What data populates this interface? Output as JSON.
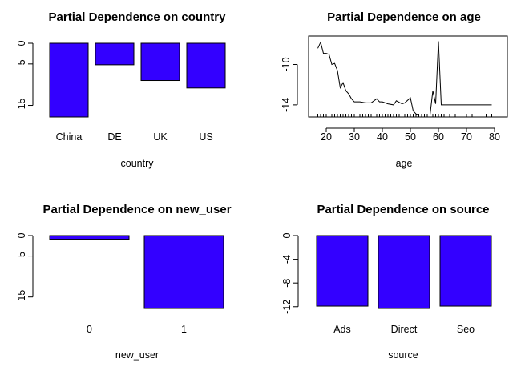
{
  "chart_data": [
    {
      "type": "bar",
      "title": "Partial Dependence on country",
      "xlabel": "country",
      "categories": [
        "China",
        "DE",
        "UK",
        "US"
      ],
      "values": [
        -17.8,
        -5.2,
        -9.0,
        -10.8
      ],
      "ylim": [
        -17.8,
        0
      ],
      "yticks": [
        0,
        -5,
        -15
      ],
      "ytick_labels": [
        "0",
        "-5",
        "-15"
      ],
      "color": "#3300ff"
    },
    {
      "type": "line",
      "title": "Partial Dependence on age",
      "xlabel": "age",
      "x": [
        17,
        18,
        19,
        20,
        21,
        22,
        23,
        24,
        25,
        26,
        27,
        28,
        29,
        30,
        32,
        34,
        36,
        38,
        39,
        40,
        42,
        44,
        45,
        47,
        48,
        50,
        51,
        52,
        53,
        55,
        57,
        58,
        59,
        60,
        61,
        62,
        64,
        66,
        70,
        72,
        73,
        77,
        79
      ],
      "y": [
        -8.4,
        -7.8,
        -8.9,
        -8.9,
        -9.0,
        -10.0,
        -9.9,
        -10.6,
        -12.3,
        -11.8,
        -12.6,
        -12.9,
        -13.4,
        -13.7,
        -13.7,
        -13.8,
        -13.8,
        -13.4,
        -13.7,
        -13.7,
        -13.9,
        -14.0,
        -13.6,
        -13.9,
        -13.8,
        -13.3,
        -14.6,
        -14.9,
        -15.0,
        -15.0,
        -15.0,
        -12.6,
        -13.9,
        -7.7,
        -14.0,
        -14.0,
        -14.0,
        -14.0,
        -14.0,
        -14.0,
        -14.0,
        -14.0,
        -14.0
      ],
      "xlim": [
        14,
        82
      ],
      "ylim": [
        -15.2,
        -7.5
      ],
      "xticks": [
        20,
        30,
        40,
        50,
        60,
        70,
        80
      ],
      "yticks": [
        -10,
        -14
      ],
      "ytick_labels": [
        "-10",
        "-14"
      ],
      "rug": [
        17,
        18,
        19,
        20,
        21,
        22,
        23,
        24,
        25,
        26,
        27,
        28,
        29,
        30,
        31,
        32,
        33,
        34,
        35,
        36,
        37,
        38,
        39,
        40,
        41,
        42,
        43,
        44,
        45,
        46,
        47,
        48,
        49,
        50,
        51,
        52,
        53,
        54,
        55,
        56,
        57,
        58,
        59,
        60,
        61,
        62,
        64,
        66,
        70,
        72,
        73,
        77,
        79
      ]
    },
    {
      "type": "bar",
      "title": "Partial Dependence on new_user",
      "xlabel": "new_user",
      "categories": [
        "0",
        "1"
      ],
      "values": [
        -0.9,
        -17.8
      ],
      "ylim": [
        -17.8,
        0
      ],
      "yticks": [
        0,
        -5,
        -15
      ],
      "ytick_labels": [
        "0",
        "-5",
        "-15"
      ],
      "color": "#3300ff"
    },
    {
      "type": "bar",
      "title": "Partial Dependence on source",
      "xlabel": "source",
      "categories": [
        "Ads",
        "Direct",
        "Seo"
      ],
      "values": [
        -11.9,
        -12.3,
        -11.9
      ],
      "ylim": [
        -12.3,
        0
      ],
      "yticks": [
        0,
        -4,
        -8,
        -12
      ],
      "ytick_labels": [
        "0",
        "-4",
        "-8",
        "-12"
      ],
      "color": "#3300ff"
    }
  ]
}
